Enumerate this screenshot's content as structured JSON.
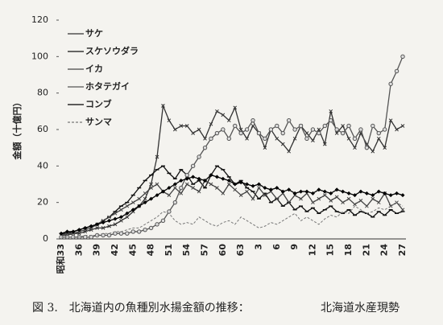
{
  "chart_data": {
    "type": "line",
    "y_label": "金額（十億円）",
    "caption": "図 3.　北海道内の魚種別水揚金額の推移：",
    "source": "北海道水産現勢",
    "categories": [
      "昭和33",
      null,
      null,
      "36",
      null,
      null,
      "39",
      null,
      null,
      "42",
      null,
      null,
      "45",
      null,
      null,
      "48",
      null,
      null,
      "51",
      null,
      null,
      "54",
      null,
      null,
      "57",
      null,
      null,
      "60",
      null,
      null,
      "63",
      null,
      null,
      "3",
      null,
      null,
      "6",
      null,
      null,
      "9",
      null,
      null,
      "12",
      null,
      null,
      "15",
      null,
      null,
      "18",
      null,
      null,
      "21",
      null,
      null,
      "24",
      null,
      null,
      "27"
    ],
    "ylim": [
      0,
      120
    ],
    "yticks": [
      0,
      20,
      40,
      60,
      80,
      100,
      120
    ],
    "series": [
      {
        "name": "サケ",
        "color": "#333333",
        "marker": "cross",
        "values": [
          2,
          2,
          3,
          3,
          4,
          5,
          6,
          6,
          7,
          8,
          10,
          12,
          15,
          18,
          22,
          30,
          45,
          73,
          65,
          60,
          62,
          62,
          58,
          60,
          55,
          63,
          70,
          68,
          65,
          72,
          60,
          55,
          62,
          58,
          50,
          60,
          55,
          52,
          48,
          55,
          62,
          58,
          54,
          60,
          52,
          70,
          58,
          62,
          55,
          50,
          58,
          52,
          48,
          55,
          50,
          65,
          60,
          62
        ]
      },
      {
        "name": "スケソウダラ",
        "color": "#111111",
        "marker": "dash",
        "values": [
          3,
          3,
          4,
          5,
          6,
          7,
          8,
          10,
          12,
          15,
          18,
          20,
          24,
          28,
          32,
          35,
          38,
          40,
          36,
          33,
          38,
          35,
          30,
          32,
          28,
          35,
          40,
          38,
          34,
          30,
          32,
          28,
          26,
          22,
          25,
          20,
          22,
          18,
          20,
          16,
          18,
          15,
          17,
          14,
          16,
          18,
          15,
          14,
          16,
          13,
          15,
          14,
          12,
          15,
          13,
          16,
          14,
          15
        ]
      },
      {
        "name": "イカ",
        "color": "#444444",
        "marker": "cross",
        "values": [
          2,
          3,
          3,
          4,
          5,
          6,
          8,
          10,
          12,
          14,
          16,
          18,
          20,
          22,
          25,
          28,
          30,
          26,
          24,
          28,
          25,
          30,
          28,
          26,
          32,
          30,
          28,
          25,
          30,
          27,
          24,
          26,
          22,
          28,
          24,
          26,
          22,
          25,
          20,
          24,
          22,
          25,
          20,
          22,
          24,
          21,
          23,
          20,
          22,
          19,
          21,
          18,
          22,
          20,
          25,
          18,
          20,
          16
        ]
      },
      {
        "name": "ホタテガイ",
        "color": "#555555",
        "marker": "circle",
        "values": [
          1,
          1,
          1,
          1,
          1,
          1,
          2,
          2,
          2,
          3,
          3,
          3,
          4,
          4,
          5,
          6,
          8,
          10,
          15,
          20,
          28,
          35,
          40,
          45,
          50,
          55,
          58,
          60,
          55,
          62,
          58,
          60,
          65,
          58,
          55,
          60,
          62,
          58,
          65,
          60,
          62,
          55,
          60,
          58,
          62,
          65,
          60,
          58,
          62,
          55,
          60,
          50,
          62,
          58,
          60,
          85,
          92,
          100
        ]
      },
      {
        "name": "コンブ",
        "color": "#000000",
        "marker": "diamond",
        "values": [
          3,
          4,
          4,
          5,
          6,
          7,
          8,
          9,
          10,
          11,
          12,
          14,
          16,
          18,
          20,
          22,
          24,
          26,
          28,
          30,
          32,
          33,
          34,
          33,
          32,
          35,
          34,
          33,
          32,
          30,
          31,
          30,
          29,
          30,
          28,
          27,
          28,
          26,
          27,
          25,
          26,
          26,
          25,
          27,
          26,
          25,
          27,
          26,
          25,
          24,
          26,
          25,
          24,
          26,
          25,
          24,
          25,
          24
        ]
      },
      {
        "name": "サンマ",
        "color": "#777777",
        "marker": "none",
        "dashed": true,
        "values": [
          1,
          1,
          1,
          1,
          2,
          2,
          2,
          3,
          3,
          4,
          4,
          5,
          6,
          6,
          8,
          10,
          12,
          15,
          14,
          10,
          8,
          9,
          8,
          12,
          10,
          8,
          7,
          9,
          10,
          8,
          12,
          10,
          8,
          6,
          7,
          9,
          8,
          10,
          12,
          14,
          10,
          12,
          10,
          8,
          11,
          13,
          12,
          15,
          14,
          18,
          16,
          14,
          15,
          17,
          16,
          18,
          20,
          18
        ]
      }
    ]
  }
}
